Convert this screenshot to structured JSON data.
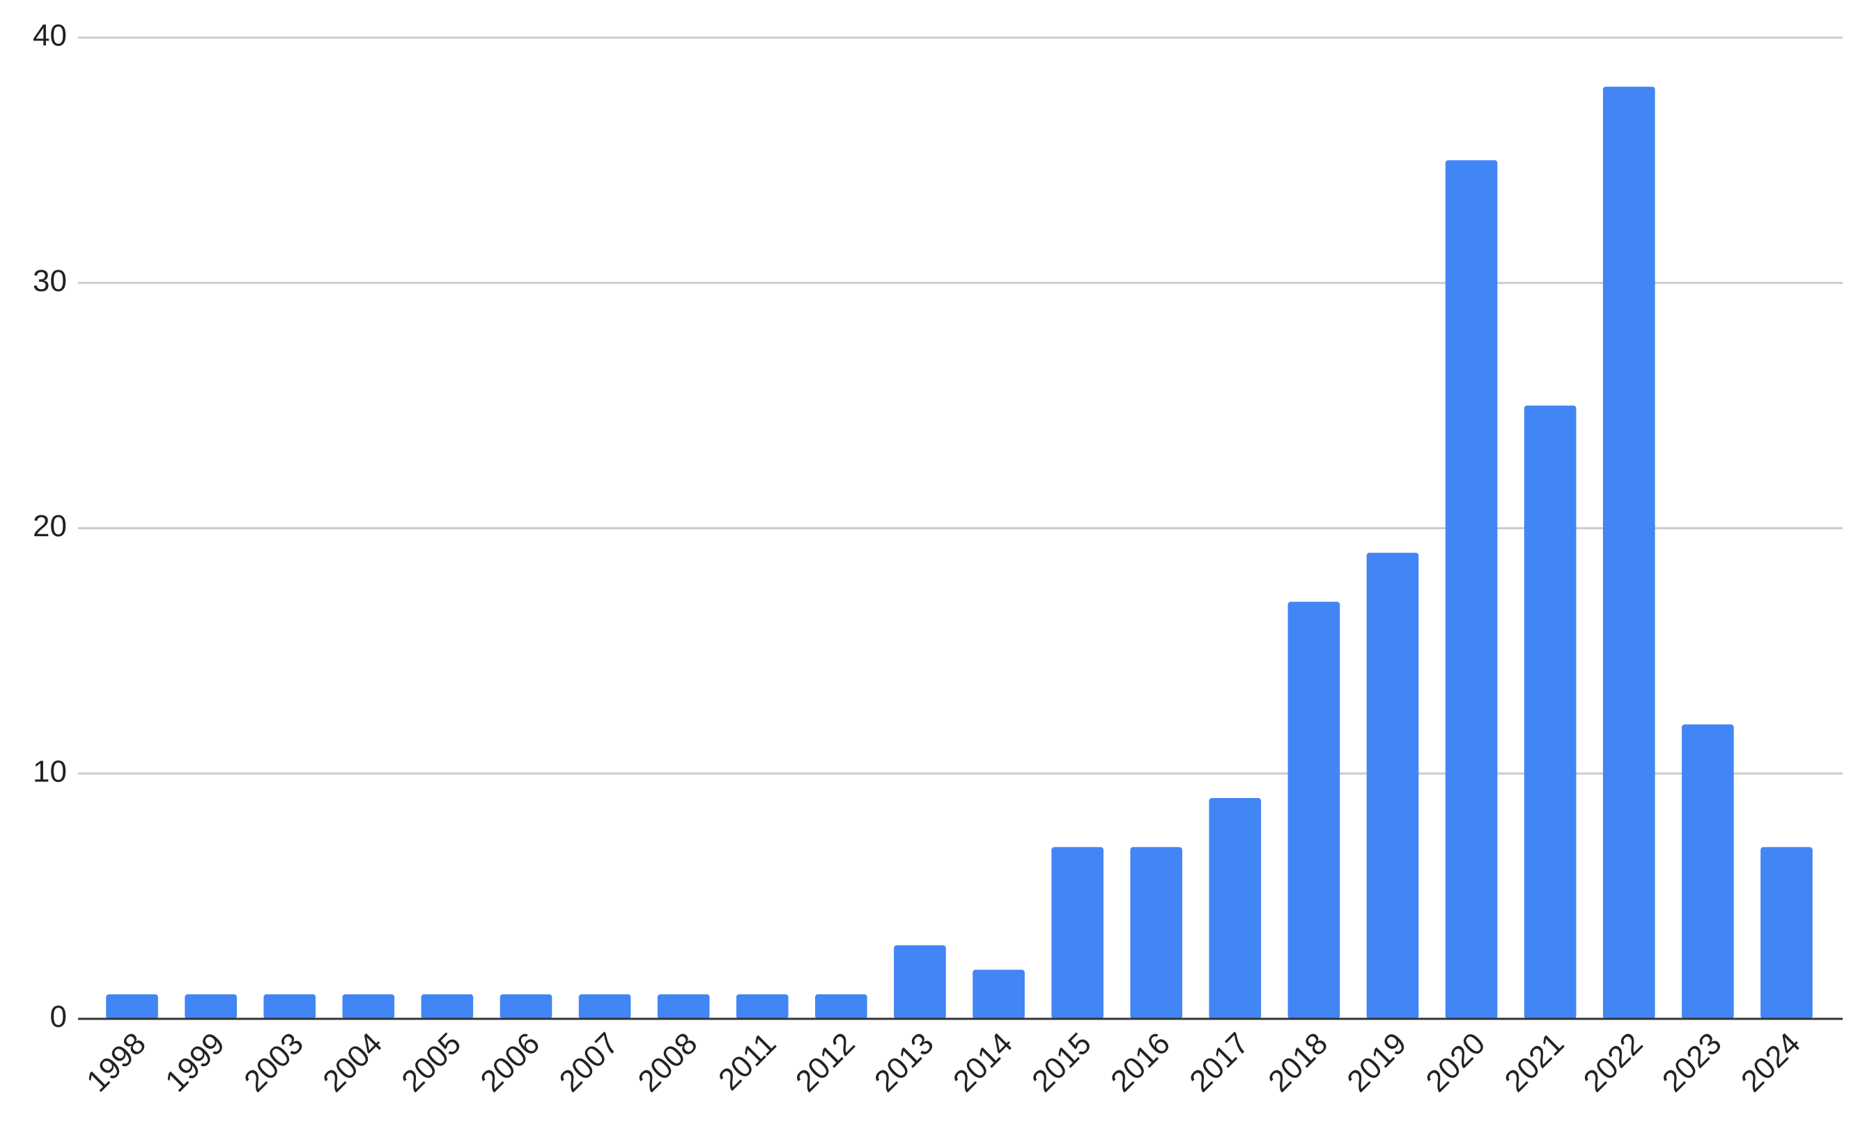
{
  "chart_data": {
    "type": "bar",
    "categories": [
      "1998",
      "1999",
      "2003",
      "2004",
      "2005",
      "2006",
      "2007",
      "2008",
      "2011",
      "2012",
      "2013",
      "2014",
      "2015",
      "2016",
      "2017",
      "2018",
      "2019",
      "2020",
      "2021",
      "2022",
      "2023",
      "2024"
    ],
    "values": [
      1,
      1,
      1,
      1,
      1,
      1,
      1,
      1,
      1,
      1,
      3,
      2,
      7,
      7,
      9,
      17,
      19,
      35,
      25,
      38,
      12,
      7
    ],
    "color": "#4285f4",
    "ylim": [
      0,
      40
    ],
    "yticks": [
      0,
      10,
      20,
      30,
      40
    ],
    "grid": true
  }
}
